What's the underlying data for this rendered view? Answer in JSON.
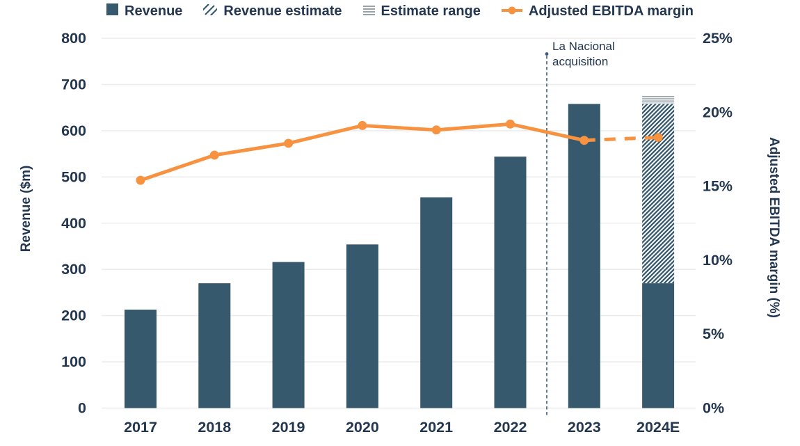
{
  "legend": {
    "items": [
      {
        "label": "Revenue",
        "icon": "solid-square-icon"
      },
      {
        "label": "Revenue estimate",
        "icon": "diagonal-hatch-icon"
      },
      {
        "label": "Estimate range",
        "icon": "horizontal-lines-icon"
      },
      {
        "label": "Adjusted EBITDA margin",
        "icon": "line-dot-icon"
      }
    ]
  },
  "annotation": {
    "lines": [
      "La Nacional",
      "acquisition"
    ],
    "between_years": [
      "2022",
      "2023"
    ]
  },
  "colors": {
    "bar": "#36596e",
    "text": "#233750",
    "orange": "#f79340",
    "gridline": "#ececec",
    "range_gray": "#98a2ab",
    "vline": "#3e5c7c"
  },
  "chart_data": {
    "type": "bar",
    "subtype": "combo-bar-line-dual-axis",
    "categories": [
      "2017",
      "2018",
      "2019",
      "2020",
      "2021",
      "2022",
      "2023",
      "2024E"
    ],
    "bars": [
      {
        "year": "2017",
        "revenue": 213
      },
      {
        "year": "2018",
        "revenue": 270
      },
      {
        "year": "2019",
        "revenue": 316
      },
      {
        "year": "2020",
        "revenue": 354
      },
      {
        "year": "2021",
        "revenue": 456
      },
      {
        "year": "2022",
        "revenue": 544
      },
      {
        "year": "2023",
        "revenue": 658
      },
      {
        "year": "2024E",
        "estimate": true,
        "revenue_actual": 270,
        "revenue_estimate": 658,
        "estimate_range_low": 658,
        "estimate_range_high": 676
      }
    ],
    "line_series": {
      "name": "Adjusted EBITDA margin",
      "values_pct": [
        15.4,
        17.1,
        17.9,
        19.1,
        18.8,
        19.2,
        18.1,
        18.3
      ],
      "dashed_from_index": 6
    },
    "axes": {
      "left": {
        "title": "Revenue ($m)",
        "min": 0,
        "max": 800,
        "step": 100,
        "ticks": [
          "0",
          "100",
          "200",
          "300",
          "400",
          "500",
          "600",
          "700",
          "800"
        ]
      },
      "right": {
        "title": "Adjusted EBITDA margin (%)",
        "min": 0,
        "max": 25,
        "step": 5,
        "ticks": [
          "0%",
          "5%",
          "10%",
          "15%",
          "20%",
          "25%"
        ]
      }
    },
    "grid": "horizontal-only",
    "legend_position": "top-center"
  }
}
